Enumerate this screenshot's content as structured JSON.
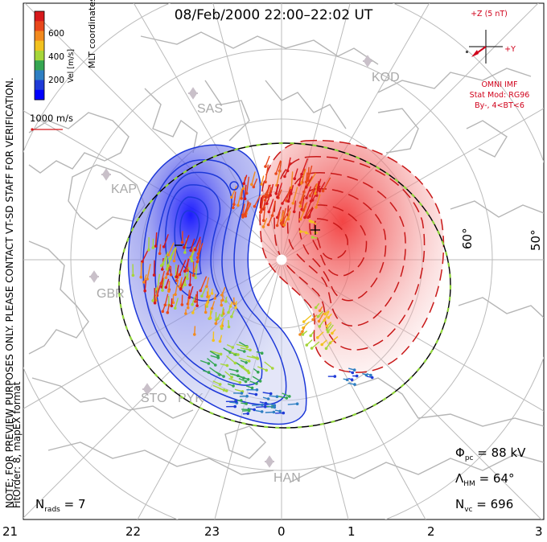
{
  "title": "08/Feb/2000 22:00–22:02 UT",
  "colorbar": {
    "label": "Vel [m/s]",
    "ticks": [
      "600",
      "400",
      "200"
    ],
    "colors": [
      "#d7191c",
      "#e8471b",
      "#f28a1e",
      "#f2c21f",
      "#a6d63a",
      "#35a652",
      "#2e7fc3",
      "#1f3bd8",
      "#0000ff"
    ]
  },
  "coords_label": "MLT coordinates",
  "velocity_scale": "1000 m/s",
  "preview_note": "NOTE: FOR PREVIEW PURPOSES ONLY. PLEASE CONTACT VT-SD STAFF FOR VERIFICATION.",
  "fit_order": "FitOrder: 8, mapEX format",
  "imf": {
    "scale_label": "+Z (5 nT)",
    "y_label": "+Y",
    "source": "OMNI IMF",
    "stat_mod": "Stat Mod: RG96",
    "bin": "By-, 4<BT<6"
  },
  "latitude_labels": [
    "60°",
    "50°"
  ],
  "stations": [
    "KOD",
    "SAS",
    "KAP",
    "GBR",
    "STO",
    "PYK",
    "HAN"
  ],
  "stats": {
    "phi_sym": "Φ",
    "phi_sub": "pc",
    "phi_val": "= 88 kV",
    "lam_sym": "Λ",
    "lam_sub": "HM",
    "lam_val": "= 64°",
    "nvc_sym": "N",
    "nvc_sub": "vc",
    "nvc_val": "= 696",
    "nrads_sym": "N",
    "nrads_sub": "rads",
    "nrads_val": "= 7"
  },
  "mlt_ticks": [
    "21",
    "22",
    "23",
    "0",
    "1",
    "2",
    "3"
  ],
  "colors": {
    "positive_cell": "#f04040",
    "negative_cell": "#2233cc",
    "boundary": "#8fd43a",
    "imf_red": "#d0021b"
  }
}
